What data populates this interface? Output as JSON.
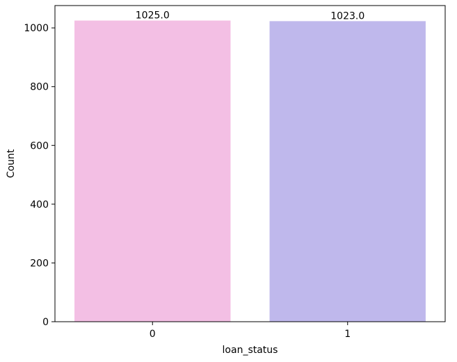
{
  "chart_data": {
    "type": "bar",
    "title": "",
    "xlabel": "loan_status",
    "ylabel": "Count",
    "categories": [
      "0",
      "1"
    ],
    "values": [
      1025.0,
      1023.0
    ],
    "data_labels": [
      "1025.0",
      "1023.0"
    ],
    "colors": [
      "#f3bfe4",
      "#bfb8ec"
    ],
    "ylim": [
      0,
      1076
    ],
    "yticks": [
      0,
      200,
      400,
      600,
      800,
      1000
    ],
    "ytick_labels": [
      "0",
      "200",
      "400",
      "600",
      "800",
      "1000"
    ],
    "grid": false,
    "legend": "none"
  }
}
